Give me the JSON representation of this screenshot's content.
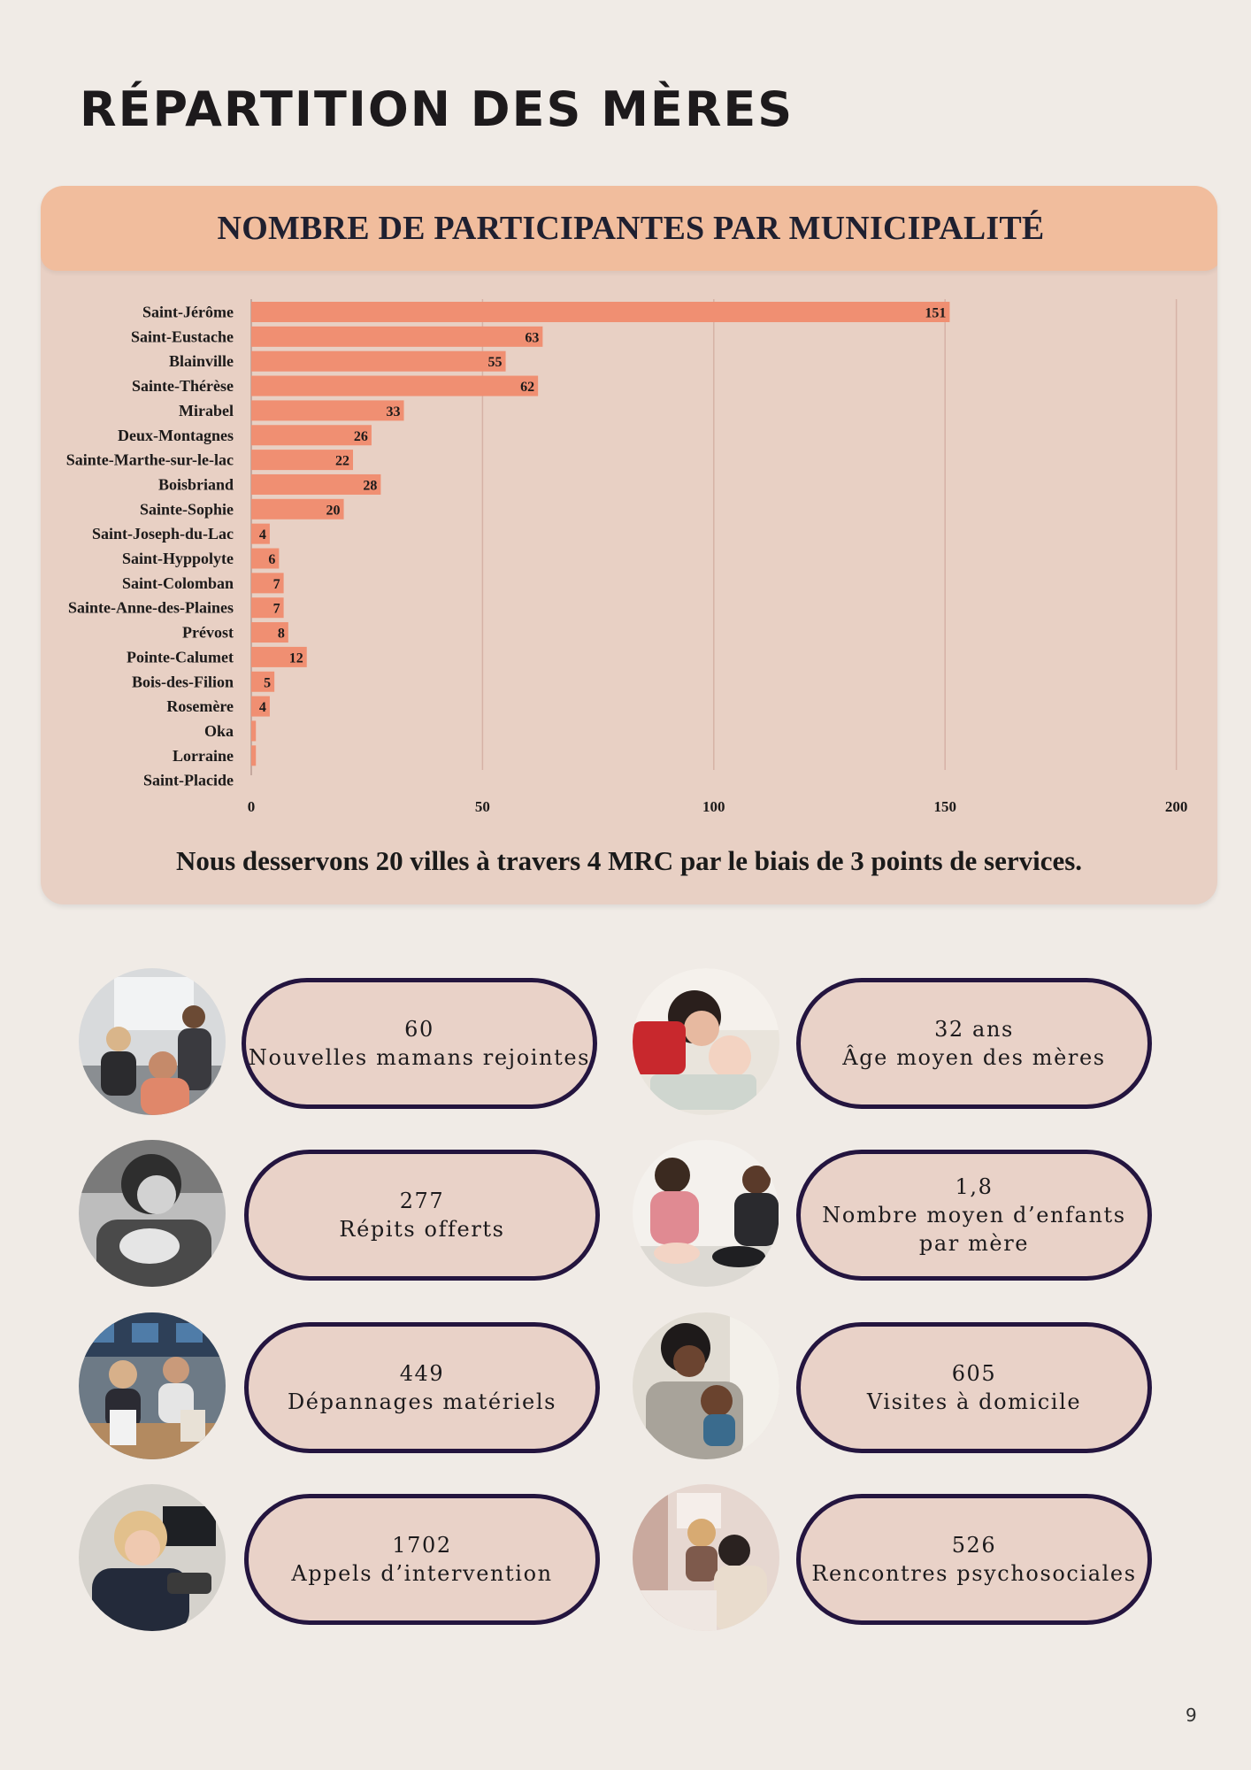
{
  "page": {
    "title": "RÉPARTITION DES MÈRES",
    "number": "9"
  },
  "chart": {
    "header": "NOMBRE DE PARTICIPANTES PAR MUNICIPALITÉ",
    "caption": "Nous desservons 20 villes à travers 4 MRC par le biais de 3 points de services.",
    "bar_color": "#f08f72"
  },
  "chart_data": {
    "type": "bar",
    "orientation": "horizontal",
    "title": "NOMBRE DE PARTICIPANTES PAR MUNICIPALITÉ",
    "categories": [
      "Saint-Jérôme",
      "Saint-Eustache",
      "Blainville",
      "Sainte-Thérèse",
      "Mirabel",
      "Deux-Montagnes",
      "Sainte-Marthe-sur-le-lac",
      "Boisbriand",
      "Sainte-Sophie",
      "Saint-Joseph-du-Lac",
      "Saint-Hyppolyte",
      "Saint-Colomban",
      "Sainte-Anne-des-Plaines",
      "Prévost",
      "Pointe-Calumet",
      "Bois-des-Filion",
      "Rosemère",
      "Oka",
      "Lorraine",
      "Saint-Placide"
    ],
    "values": [
      151,
      63,
      55,
      62,
      33,
      26,
      22,
      28,
      20,
      4,
      6,
      7,
      7,
      8,
      12,
      5,
      4,
      1,
      1,
      0
    ],
    "data_labels": [
      "151",
      "63",
      "55",
      "62",
      "33",
      "26",
      "22",
      "28",
      "20",
      "4",
      "6",
      "7",
      "7",
      "8",
      "12",
      "5",
      "4",
      "",
      "",
      ""
    ],
    "xlim": [
      0,
      200
    ],
    "xticks": [
      0,
      50,
      100,
      150,
      200
    ],
    "grid": true,
    "legend": "none"
  },
  "stats": [
    {
      "value": "60",
      "label": "Nouvelles mamans rejointes",
      "photo": "group-workshop-photo"
    },
    {
      "value": "32 ans",
      "label": "Âge moyen des mères",
      "photo": "mother-kissing-baby-photo"
    },
    {
      "value": "277",
      "label": "Répits offerts",
      "photo": "mother-holding-newborn-photo"
    },
    {
      "value": "1,8",
      "label": "Nombre moyen d’enfants",
      "label2": "par mère",
      "photo": "mothers-with-babies-on-floor-photo"
    },
    {
      "value": "449",
      "label": "Dépannages matériels",
      "photo": "volunteers-sorting-donations-photo"
    },
    {
      "value": "605",
      "label": "Visites à domicile",
      "photo": "mother-carrying-baby-photo"
    },
    {
      "value": "1702",
      "label": "Appels d’intervention",
      "photo": "worker-on-phone-photo"
    },
    {
      "value": "526",
      "label": "Rencontres psychosociales",
      "photo": "counselling-meeting-photo"
    }
  ]
}
